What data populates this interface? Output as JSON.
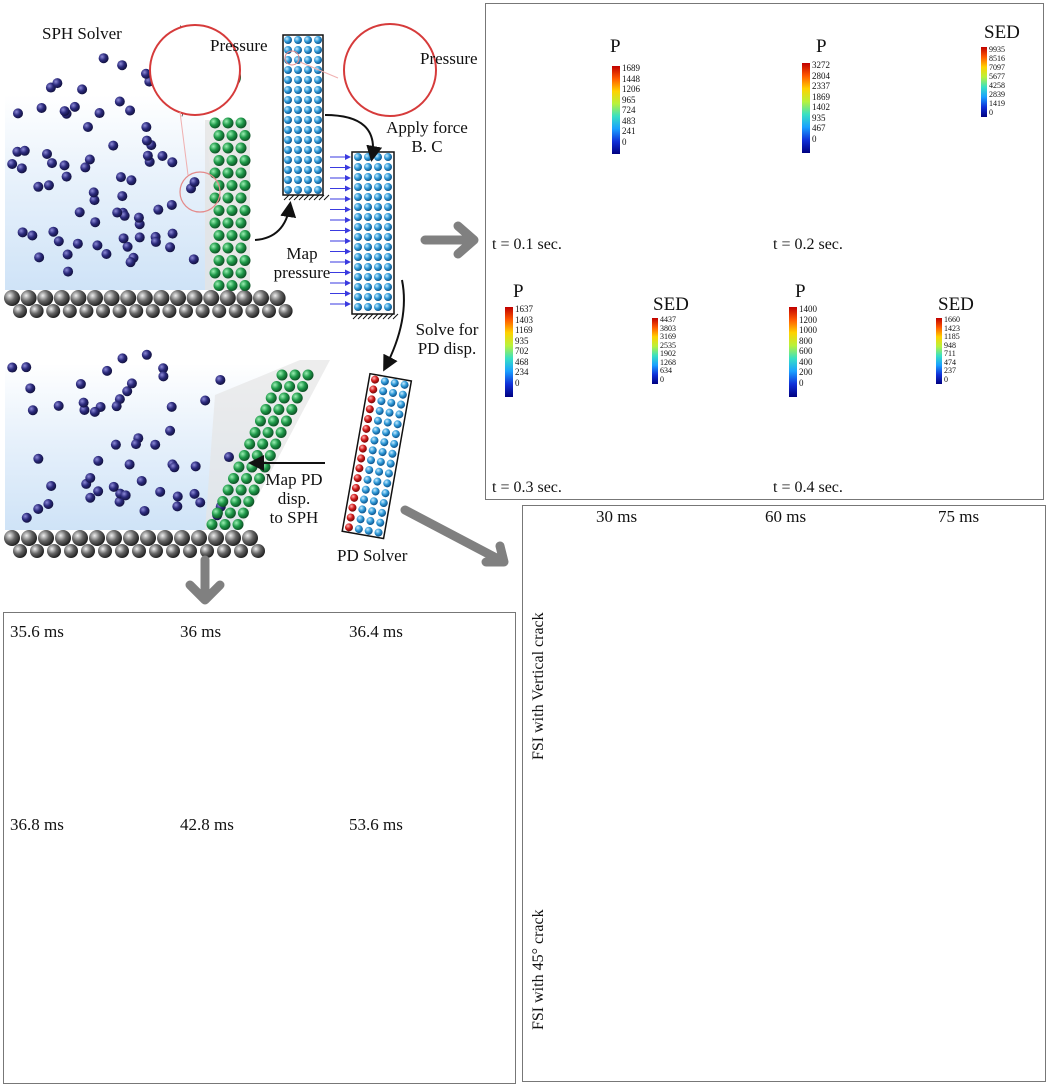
{
  "workflow": {
    "sph_solver": "SPH Solver",
    "pressure_left": "Pressure",
    "pressure_right": "Pressure",
    "apply_force": "Apply force\nB. C",
    "map_pressure": "Map\npressure",
    "solve_pd": "Solve for\nPD disp.",
    "map_pd": "Map PD\ndisp.\nto SPH",
    "pd_solver": "PD Solver"
  },
  "dam_break": {
    "panels": [
      {
        "time": "t = 0.1 sec.",
        "p_title": "P",
        "p_ticks": [
          "1689",
          "1448",
          "1206",
          "965",
          "724",
          "483",
          "241",
          "0"
        ]
      },
      {
        "time": "t = 0.2 sec.",
        "p_title": "P",
        "p_ticks": [
          "3272",
          "2804",
          "2337",
          "1869",
          "1402",
          "935",
          "467",
          "0"
        ],
        "sed_title": "SED",
        "sed_ticks": [
          "9935",
          "8516",
          "7097",
          "5677",
          "4258",
          "2839",
          "1419",
          "0"
        ]
      },
      {
        "time": "t = 0.3 sec.",
        "p_title": "P",
        "p_ticks": [
          "1637",
          "1403",
          "1169",
          "935",
          "702",
          "468",
          "234",
          "0"
        ],
        "sed_title": "SED",
        "sed_ticks": [
          "4437",
          "3803",
          "3169",
          "2535",
          "1902",
          "1268",
          "634",
          "0"
        ]
      },
      {
        "time": "t = 0.4 sec.",
        "p_title": "P",
        "p_ticks": [
          "1400",
          "1200",
          "1000",
          "800",
          "600",
          "400",
          "200",
          "0"
        ],
        "sed_title": "SED",
        "sed_ticks": [
          "1660",
          "1423",
          "1185",
          "948",
          "711",
          "474",
          "237",
          "0"
        ]
      }
    ]
  },
  "crack_sequence": {
    "times": [
      "35.6 ms",
      "36 ms",
      "36.4 ms",
      "36.8 ms",
      "42.8 ms",
      "53.6 ms"
    ]
  },
  "fsi": {
    "column_times": [
      "30 ms",
      "60 ms",
      "75 ms"
    ],
    "row_labels": [
      "FSI with Vertical crack",
      "FSI with 45° crack"
    ]
  },
  "colors": {
    "sph_particle": "#26226e",
    "pd_particle_green": "#1f9a4a",
    "pd_particle_blue": "#3aa0dc",
    "wall_dark": "#0a1f7a",
    "arrow_gray": "#808080",
    "crack_brown": "#7a0e0a"
  }
}
